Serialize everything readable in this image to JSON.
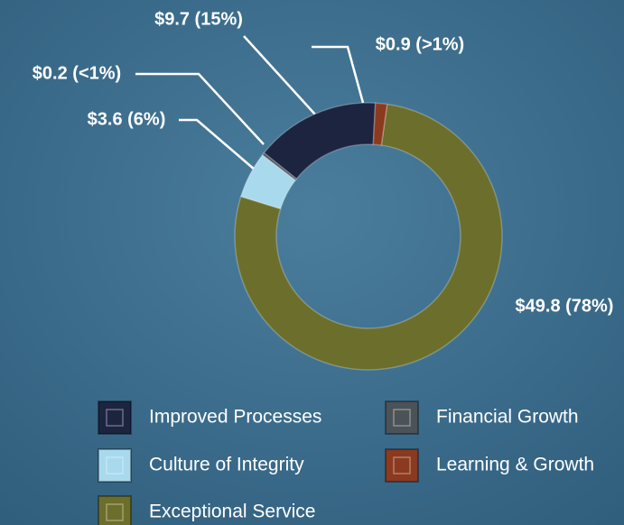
{
  "chart_data": {
    "type": "donut",
    "categories": [
      "Improved Processes",
      "Financial Growth",
      "Culture of Integrity",
      "Learning & Growth",
      "Exceptional Service"
    ],
    "values": [
      9.7,
      0.2,
      3.6,
      0.9,
      49.8
    ],
    "value_labels": [
      "$9.7 (15%)",
      "$0.2 (<1%)",
      "$3.6 (6%)",
      "$0.9 (>1%)",
      "$49.8 (78%)"
    ],
    "colors": [
      "#1c2440",
      "#4b5358",
      "#a9d9ec",
      "#8b3a1f",
      "#6c6e2b"
    ]
  }
}
